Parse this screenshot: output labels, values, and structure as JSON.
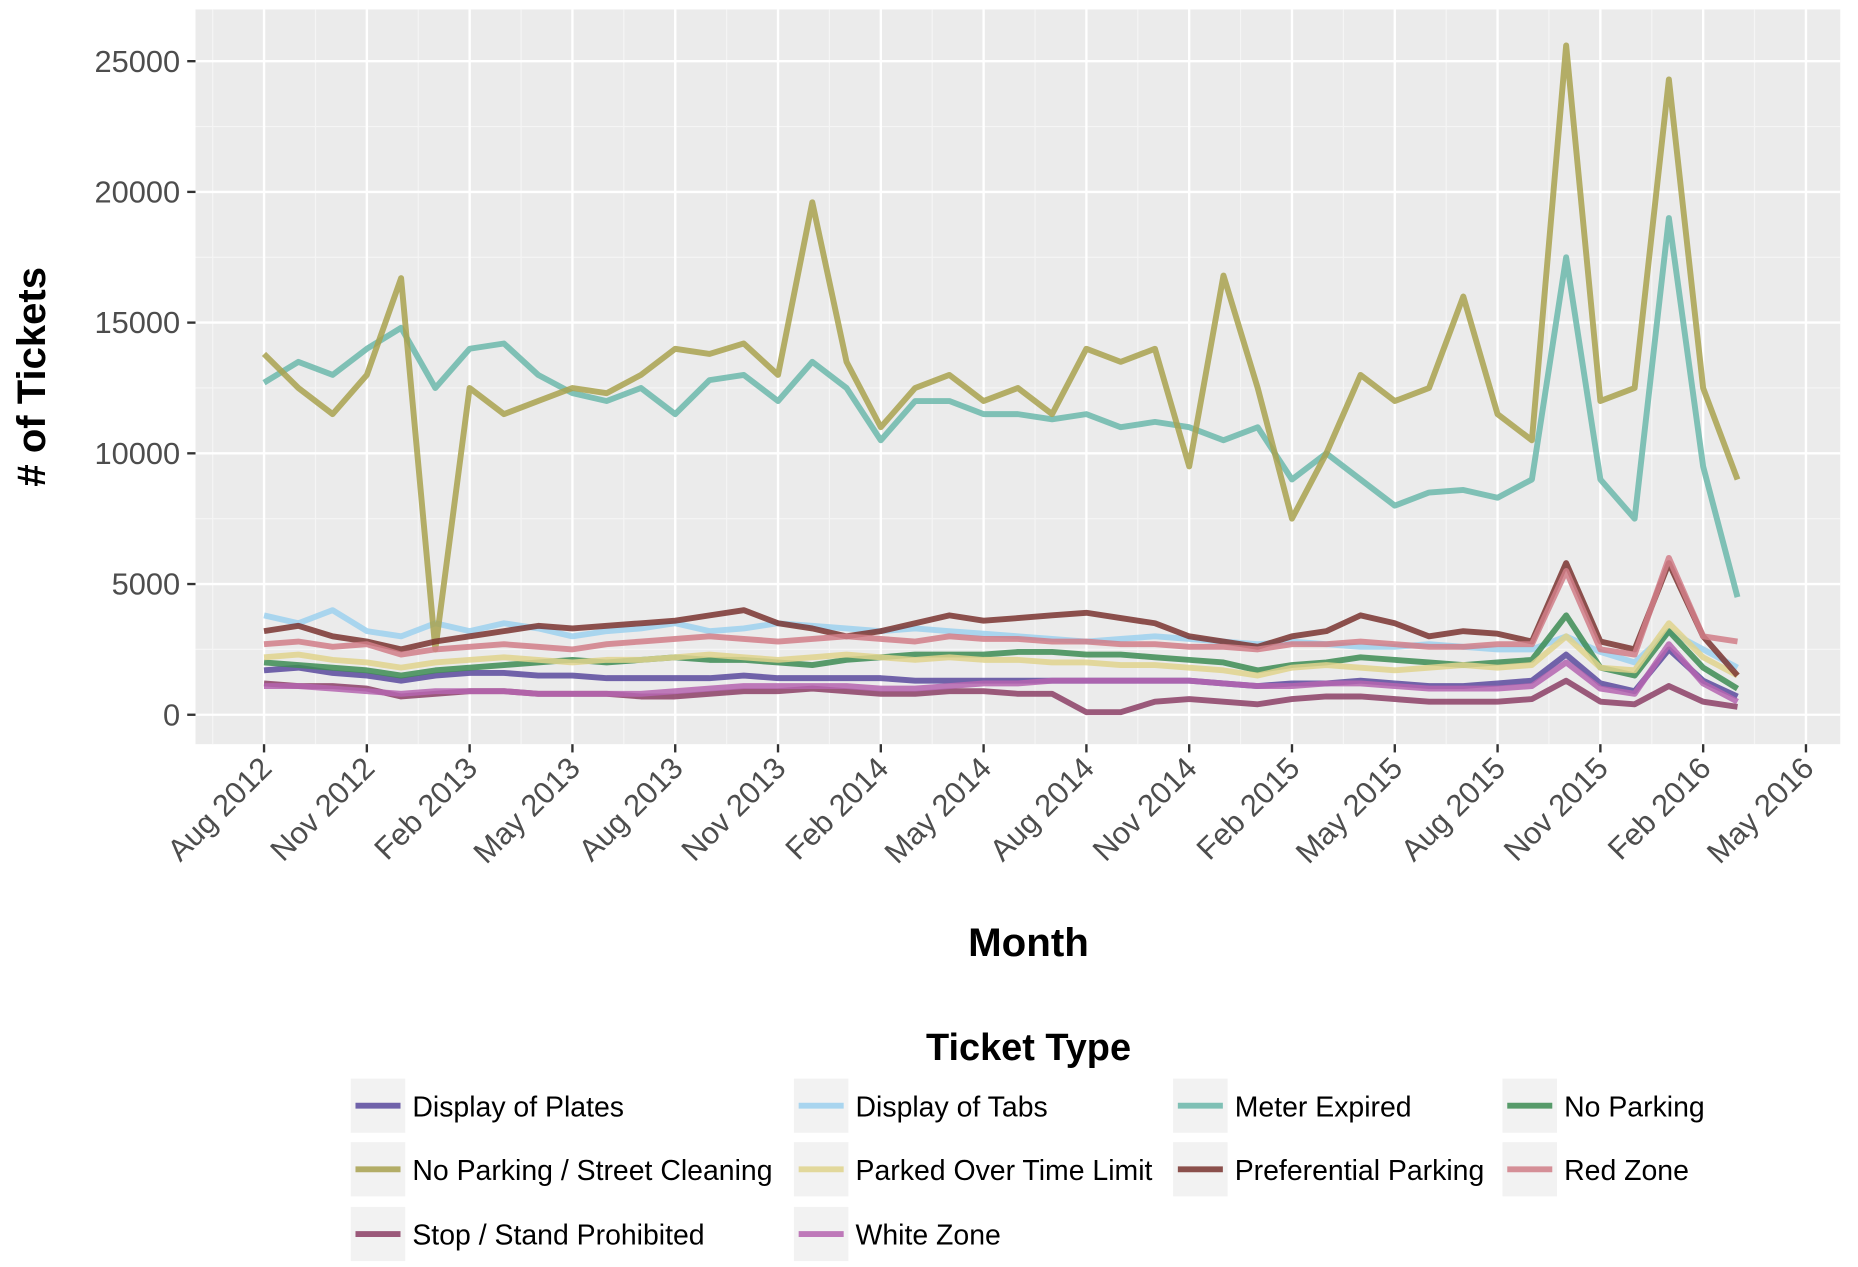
{
  "chart_data": {
    "type": "line",
    "x_label": "Month",
    "y_label": "# of Tickets",
    "legend_title": "Ticket Type",
    "legend_position": "bottom",
    "grid": true,
    "xlim": [
      "2012-06",
      "2016-06"
    ],
    "xticks": [
      {
        "value": "2012-08",
        "label": "Aug 2012"
      },
      {
        "value": "2012-11",
        "label": "Nov 2012"
      },
      {
        "value": "2013-02",
        "label": "Feb 2013"
      },
      {
        "value": "2013-05",
        "label": "May 2013"
      },
      {
        "value": "2013-08",
        "label": "Aug 2013"
      },
      {
        "value": "2013-11",
        "label": "Nov 2013"
      },
      {
        "value": "2014-02",
        "label": "Feb 2014"
      },
      {
        "value": "2014-05",
        "label": "May 2014"
      },
      {
        "value": "2014-08",
        "label": "Aug 2014"
      },
      {
        "value": "2014-11",
        "label": "Nov 2014"
      },
      {
        "value": "2015-02",
        "label": "Feb 2015"
      },
      {
        "value": "2015-05",
        "label": "May 2015"
      },
      {
        "value": "2015-08",
        "label": "Aug 2015"
      },
      {
        "value": "2015-11",
        "label": "Nov 2015"
      },
      {
        "value": "2016-02",
        "label": "Feb 2016"
      },
      {
        "value": "2016-05",
        "label": "May 2016"
      }
    ],
    "ylim": [
      -1126,
      26980
    ],
    "yticks": [
      0,
      5000,
      10000,
      15000,
      20000,
      25000
    ],
    "x": [
      "2012-08",
      "2012-09",
      "2012-10",
      "2012-11",
      "2012-12",
      "2013-01",
      "2013-02",
      "2013-03",
      "2013-04",
      "2013-05",
      "2013-06",
      "2013-07",
      "2013-08",
      "2013-09",
      "2013-10",
      "2013-11",
      "2013-12",
      "2014-01",
      "2014-02",
      "2014-03",
      "2014-04",
      "2014-05",
      "2014-06",
      "2014-07",
      "2014-08",
      "2014-09",
      "2014-10",
      "2014-11",
      "2014-12",
      "2015-01",
      "2015-02",
      "2015-03",
      "2015-04",
      "2015-05",
      "2015-06",
      "2015-07",
      "2015-08",
      "2015-09",
      "2015-10",
      "2015-11",
      "2015-12",
      "2016-01",
      "2016-02",
      "2016-03"
    ],
    "series": [
      {
        "name": "Display of Plates",
        "color": "#5a4a9e",
        "values": [
          1700,
          1800,
          1600,
          1500,
          1300,
          1500,
          1600,
          1600,
          1500,
          1500,
          1400,
          1400,
          1400,
          1400,
          1500,
          1400,
          1400,
          1400,
          1400,
          1300,
          1300,
          1300,
          1300,
          1300,
          1300,
          1300,
          1300,
          1300,
          1200,
          1100,
          1200,
          1200,
          1300,
          1200,
          1100,
          1100,
          1200,
          1300,
          2300,
          1200,
          900,
          2500,
          1300,
          700
        ]
      },
      {
        "name": "Display of Tabs",
        "color": "#9dd1ef",
        "values": [
          3800,
          3500,
          4000,
          3200,
          3000,
          3500,
          3200,
          3500,
          3300,
          3000,
          3200,
          3300,
          3500,
          3200,
          3300,
          3500,
          3400,
          3300,
          3200,
          3300,
          3200,
          3100,
          3000,
          2900,
          2800,
          2900,
          3000,
          2900,
          2800,
          2700,
          2800,
          2700,
          2600,
          2600,
          2700,
          2600,
          2500,
          2500,
          3000,
          2400,
          2000,
          3200,
          2500,
          1800
        ]
      },
      {
        "name": "Meter Expired",
        "color": "#6cb8ab",
        "values": [
          12700,
          13500,
          13000,
          14000,
          14800,
          12500,
          14000,
          14200,
          13000,
          12300,
          12000,
          12500,
          11500,
          12800,
          13000,
          12000,
          13500,
          12500,
          10500,
          12000,
          12000,
          11500,
          11500,
          11300,
          11500,
          11000,
          11200,
          11000,
          10500,
          11000,
          9000,
          10000,
          9000,
          8000,
          8500,
          8600,
          8300,
          9000,
          17500,
          9000,
          7500,
          19000,
          9500,
          4500
        ]
      },
      {
        "name": "No Parking",
        "color": "#3d8c53",
        "values": [
          2000,
          1900,
          1800,
          1700,
          1500,
          1700,
          1800,
          1900,
          2000,
          2100,
          2000,
          2100,
          2200,
          2100,
          2100,
          2000,
          1900,
          2100,
          2200,
          2300,
          2300,
          2300,
          2400,
          2400,
          2300,
          2300,
          2200,
          2100,
          2000,
          1700,
          1900,
          2000,
          2200,
          2100,
          2000,
          1900,
          2000,
          2100,
          3800,
          1800,
          1500,
          3200,
          1800,
          1000
        ]
      },
      {
        "name": "No Parking / Street Cleaning",
        "color": "#a9a24f",
        "values": [
          13800,
          12500,
          11500,
          13000,
          16700,
          2500,
          12500,
          11500,
          12000,
          12500,
          12300,
          13000,
          14000,
          13800,
          14200,
          13000,
          19600,
          13500,
          11000,
          12500,
          13000,
          12000,
          12500,
          11500,
          14000,
          13500,
          14000,
          9500,
          16800,
          12500,
          7500,
          10000,
          13000,
          12000,
          12500,
          16000,
          11500,
          10500,
          25600,
          12000,
          12500,
          24300,
          12500,
          9000
        ]
      },
      {
        "name": "Parked Over Time Limit",
        "color": "#e0d48d",
        "values": [
          2200,
          2300,
          2100,
          2000,
          1800,
          2000,
          2100,
          2200,
          2100,
          2000,
          2100,
          2100,
          2200,
          2300,
          2200,
          2100,
          2200,
          2300,
          2200,
          2100,
          2200,
          2100,
          2100,
          2000,
          2000,
          1900,
          1900,
          1800,
          1700,
          1500,
          1800,
          1900,
          1800,
          1700,
          1800,
          1900,
          1800,
          1900,
          3000,
          1800,
          1700,
          3500,
          2200,
          1500
        ]
      },
      {
        "name": "Preferential Parking",
        "color": "#7a3430",
        "values": [
          3200,
          3400,
          3000,
          2800,
          2500,
          2800,
          3000,
          3200,
          3400,
          3300,
          3400,
          3500,
          3600,
          3800,
          4000,
          3500,
          3300,
          3000,
          3200,
          3500,
          3800,
          3600,
          3700,
          3800,
          3900,
          3700,
          3500,
          3000,
          2800,
          2600,
          3000,
          3200,
          3800,
          3500,
          3000,
          3200,
          3100,
          2800,
          5800,
          2800,
          2500,
          5800,
          3000,
          1500
        ]
      },
      {
        "name": "Red Zone",
        "color": "#d17e88",
        "values": [
          2700,
          2800,
          2600,
          2700,
          2300,
          2500,
          2600,
          2700,
          2600,
          2500,
          2700,
          2800,
          2900,
          3000,
          2900,
          2800,
          2900,
          3000,
          2900,
          2800,
          3000,
          2900,
          2900,
          2800,
          2800,
          2700,
          2700,
          2600,
          2600,
          2500,
          2700,
          2700,
          2800,
          2700,
          2600,
          2600,
          2700,
          2700,
          5500,
          2500,
          2300,
          6000,
          3000,
          2800
        ]
      },
      {
        "name": "Stop / Stand Prohibited",
        "color": "#8c3f66",
        "values": [
          1200,
          1100,
          1100,
          1000,
          700,
          800,
          900,
          900,
          800,
          800,
          800,
          700,
          700,
          800,
          900,
          900,
          1000,
          900,
          800,
          800,
          900,
          900,
          800,
          800,
          100,
          100,
          500,
          600,
          500,
          400,
          600,
          700,
          700,
          600,
          500,
          500,
          500,
          600,
          1300,
          500,
          400,
          1100,
          500,
          300
        ]
      },
      {
        "name": "White Zone",
        "color": "#b565b0",
        "values": [
          1100,
          1100,
          1000,
          900,
          800,
          900,
          900,
          900,
          800,
          800,
          800,
          800,
          900,
          1000,
          1100,
          1100,
          1100,
          1100,
          1000,
          1000,
          1100,
          1200,
          1200,
          1300,
          1300,
          1300,
          1300,
          1300,
          1200,
          1100,
          1100,
          1200,
          1200,
          1100,
          1000,
          1000,
          1000,
          1100,
          2000,
          1000,
          800,
          2700,
          1200,
          500
        ]
      }
    ]
  }
}
